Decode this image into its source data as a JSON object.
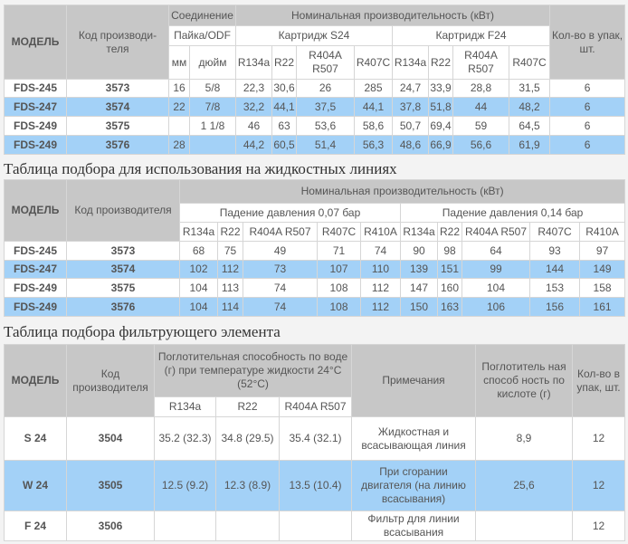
{
  "table1": {
    "h_model": "МОДЕЛЬ",
    "h_code": "Код производи-теля",
    "h_conn": "Соединение",
    "h_cap": "Номинальная производительность (кВт)",
    "h_solder": "Пайка/ODF",
    "h_s24": "Картридж S24",
    "h_f24": "Картридж F24",
    "h_qty": "Кол-во в упак, шт.",
    "h_cols": [
      "мм",
      "дюйм",
      "R134a",
      "R22",
      "R404A R507",
      "R407C",
      "R134a",
      "R22",
      "R404A R507",
      "R407C"
    ],
    "rows": [
      [
        "FDS-245",
        "3573",
        "16",
        "5/8",
        "22,3",
        "30,6",
        "26",
        "285",
        "24,7",
        "33,9",
        "28,8",
        "31,5",
        "6"
      ],
      [
        "FDS-247",
        "3574",
        "22",
        "7/8",
        "32,2",
        "44,1",
        "37,5",
        "44,1",
        "37,8",
        "51,8",
        "44",
        "48,2",
        "6"
      ],
      [
        "FDS-249",
        "3575",
        "",
        "1 1/8",
        "46",
        "63",
        "53,6",
        "58,6",
        "50,7",
        "69,4",
        "59",
        "64,5",
        "6"
      ],
      [
        "FDS-249",
        "3576",
        "28",
        "",
        "44,2",
        "60,5",
        "51,4",
        "56,3",
        "48,6",
        "66,9",
        "56,6",
        "61,9",
        "6"
      ]
    ]
  },
  "title2": "Таблица подбора для использования на жидкостных линиях",
  "table2": {
    "h_model": "МОДЕЛЬ",
    "h_code": "Код производителя",
    "h_cap": "Номинальная производительность (кВт)",
    "h_d1": "Падение давления 0,07 бар",
    "h_d2": "Падение давления 0,14 бар",
    "h_cols": [
      "R134a",
      "R22",
      "R404A R507",
      "R407C",
      "R410A",
      "R134a",
      "R22",
      "R404A R507",
      "R407C",
      "R410A"
    ],
    "rows": [
      [
        "FDS-245",
        "3573",
        "68",
        "75",
        "49",
        "71",
        "74",
        "90",
        "98",
        "64",
        "93",
        "97"
      ],
      [
        "FDS-247",
        "3574",
        "102",
        "112",
        "73",
        "107",
        "110",
        "139",
        "151",
        "99",
        "144",
        "149"
      ],
      [
        "FDS-249",
        "3575",
        "104",
        "113",
        "74",
        "108",
        "112",
        "147",
        "160",
        "104",
        "153",
        "158"
      ],
      [
        "FDS-249",
        "3576",
        "104",
        "114",
        "74",
        "108",
        "112",
        "150",
        "163",
        "106",
        "156",
        "161"
      ]
    ]
  },
  "title3": "Таблица подбора фильтрующего элемента",
  "table3": {
    "h_model": "МОДЕЛЬ",
    "h_code": "Код производителя",
    "h_water": "Поглотительная способность по воде (г) при температуре жидкости 24°C (52°C)",
    "h_notes": "Примечания",
    "h_acid": "Поглотитель ная способ ность по кислоте (г)",
    "h_qty": "Кол-во в упак, шт.",
    "h_cols": [
      "R134a",
      "R22",
      "R404A R507"
    ],
    "rows": [
      [
        "S 24",
        "3504",
        "35.2 (32.3)",
        "34.8 (29.5)",
        "35.4 (32.1)",
        "Жидкостная и всасывающая линия",
        "8,9",
        "12"
      ],
      [
        "W 24",
        "3505",
        "12.5 (9.2)",
        "12.3 (8.9)",
        "13.5 (10.4)",
        "При сгорании двигателя (на линию всасывания)",
        "25,6",
        "12"
      ],
      [
        "F 24",
        "3506",
        "",
        "",
        "",
        "Фильтр для линии всасывания",
        "",
        "12"
      ]
    ]
  },
  "colors": {
    "header": "#c7c7c7",
    "row_alt": "#a3d1f7"
  }
}
